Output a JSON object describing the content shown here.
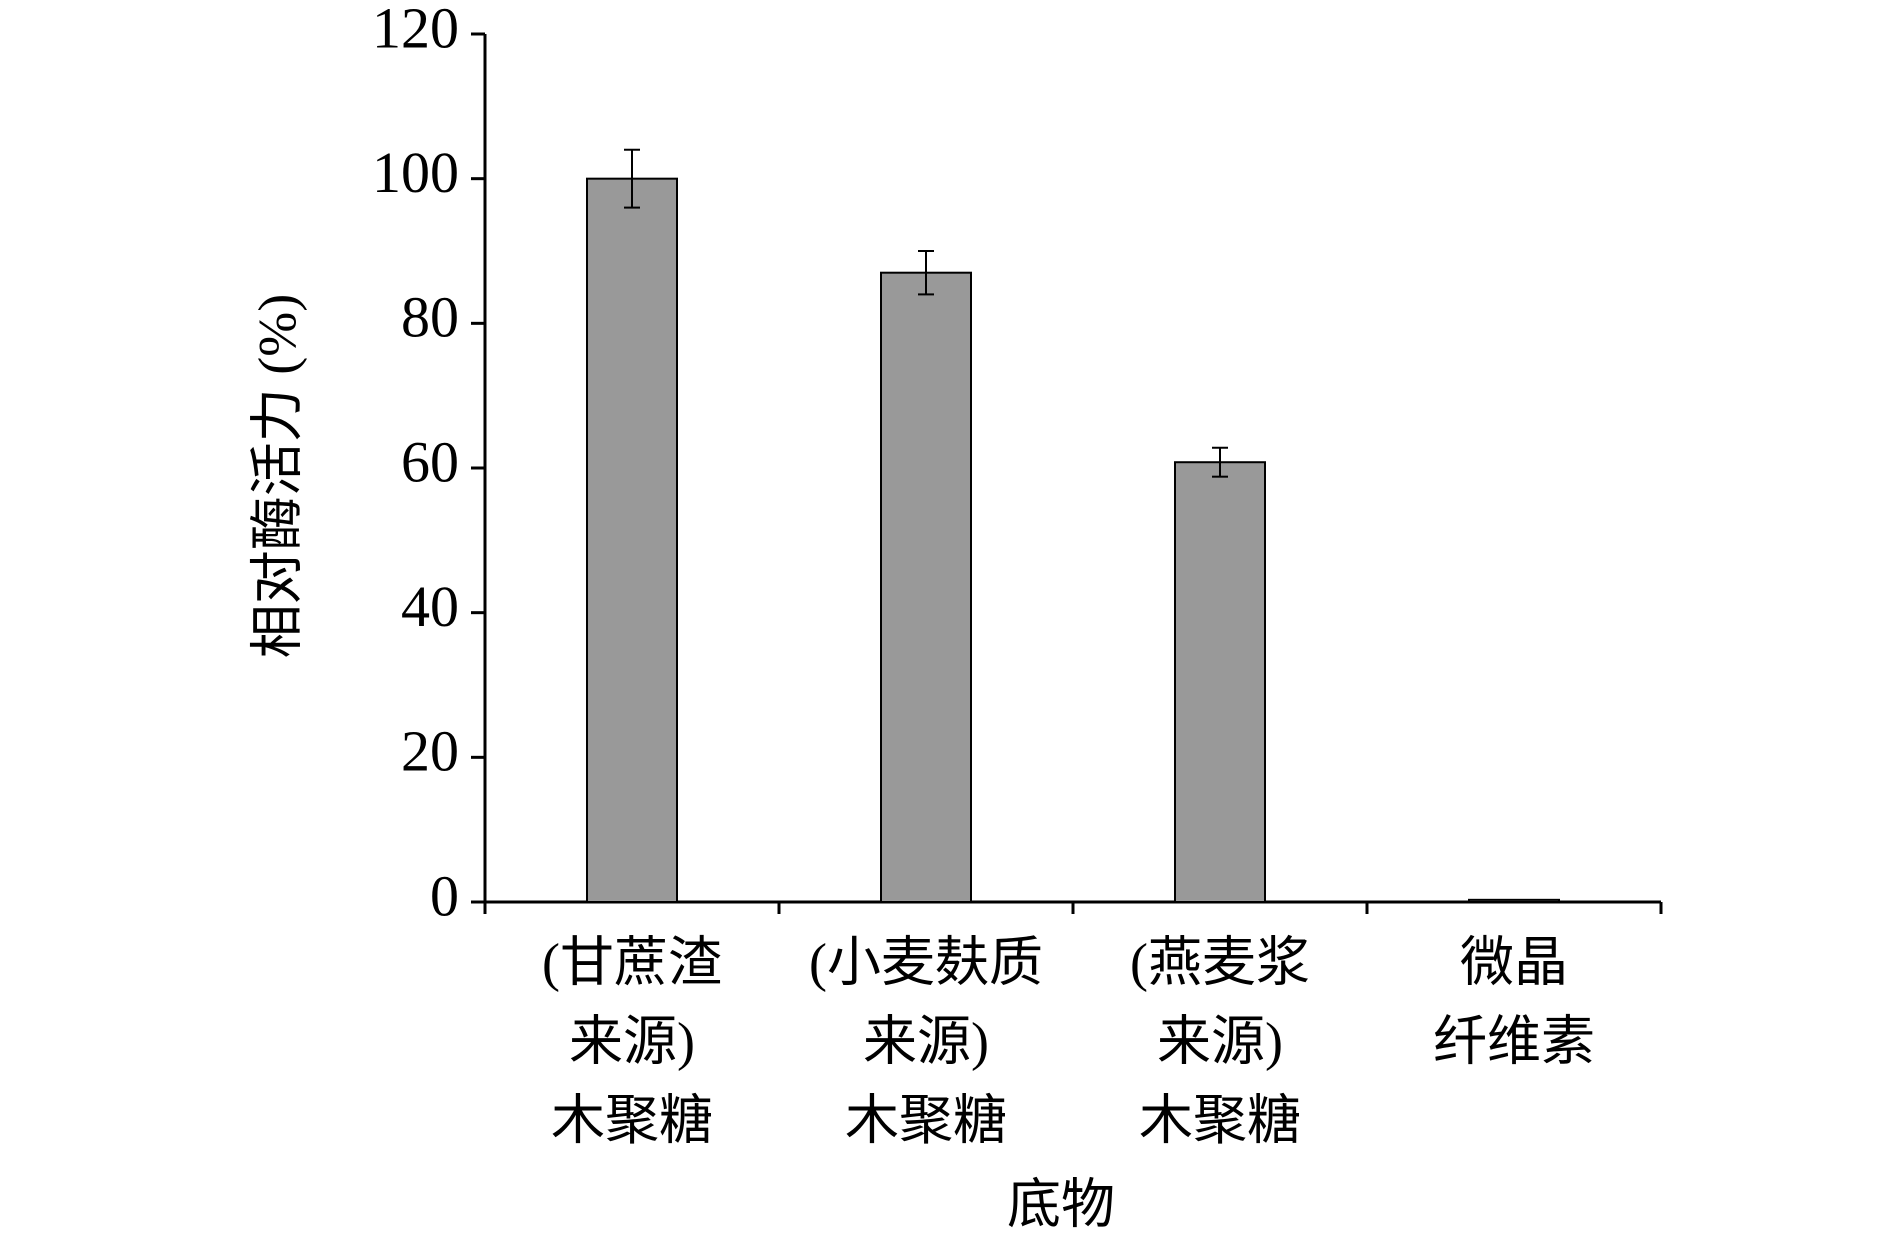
{
  "chart_data": {
    "type": "bar",
    "x_label": "底物",
    "y_label": "相对酶活力 (%)",
    "categories": [
      [
        "(甘蔗渣",
        "来源)",
        "木聚糖"
      ],
      [
        "(小麦麸质",
        "来源)",
        "木聚糖"
      ],
      [
        "(燕麦浆",
        "来源)",
        "木聚糖"
      ],
      [
        "微晶",
        "纤维素"
      ]
    ],
    "values": [
      100,
      87,
      60.8,
      0.3
    ],
    "errors": [
      4,
      3,
      2,
      null
    ],
    "color": "#999999",
    "ylim": [
      0,
      120
    ],
    "yticks": [
      0,
      20,
      40,
      60,
      80,
      100,
      120
    ],
    "grid": false
  }
}
